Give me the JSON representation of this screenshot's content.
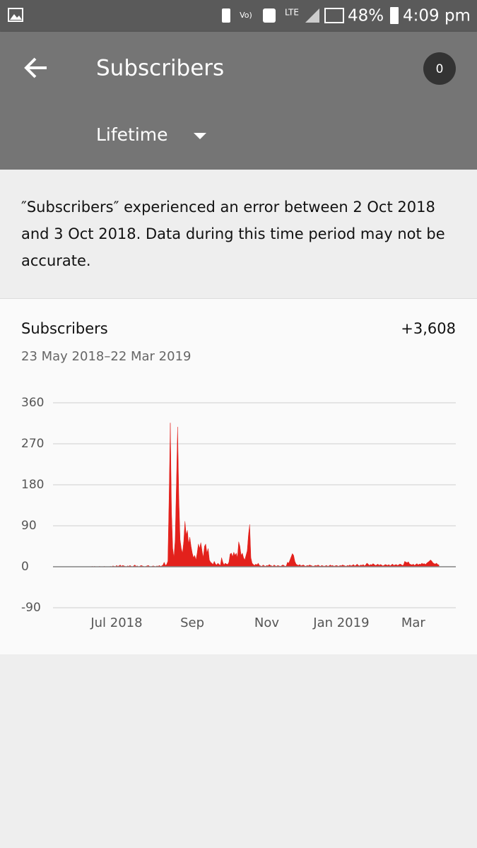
{
  "status_bar": {
    "network": "LTE",
    "battery": "48%",
    "time": "4:09 pm"
  },
  "header": {
    "title": "Subscribers",
    "badge": "0",
    "period": "Lifetime"
  },
  "notice": "″Subscribers″ experienced an error between 2 Oct 2018 and 3 Oct 2018. Data during this time period may not be accurate.",
  "card": {
    "title": "Subscribers",
    "total": "+3,608",
    "date_range": "23 May 2018–22 Mar 2019"
  },
  "chart_data": {
    "type": "area",
    "color": "#e3211c",
    "grid": true,
    "ylim": [
      -90,
      360
    ],
    "yticks": [
      -90,
      0,
      90,
      180,
      270,
      360
    ],
    "categories": [
      null,
      null,
      null,
      null,
      null,
      null,
      null,
      null,
      null,
      null,
      null,
      null,
      null,
      null,
      null,
      null,
      null,
      null,
      null,
      null,
      null,
      null,
      null,
      null,
      null,
      null,
      null,
      null,
      null,
      null,
      null,
      null,
      null,
      null,
      null,
      null,
      null,
      null,
      null,
      "Jul 2018",
      null,
      null,
      null,
      null,
      null,
      null,
      null,
      null,
      null,
      null,
      null,
      null,
      null,
      null,
      null,
      null,
      null,
      null,
      null,
      null,
      null,
      null,
      null,
      null,
      null,
      null,
      null,
      null,
      null,
      null,
      null,
      null,
      null,
      null,
      null,
      null,
      null,
      null,
      null,
      null,
      null,
      null,
      null,
      null,
      null,
      null,
      null,
      null,
      null,
      null,
      null,
      null,
      null,
      null,
      null,
      null,
      null,
      null,
      null,
      null,
      null,
      "Sep",
      null,
      null,
      null,
      null,
      null,
      null,
      null,
      null,
      null,
      null,
      null,
      null,
      null,
      null,
      null,
      null,
      null,
      null,
      null,
      null,
      null,
      null,
      null,
      null,
      null,
      null,
      null,
      null,
      null,
      null,
      null,
      null,
      null,
      null,
      null,
      null,
      null,
      null,
      null,
      null,
      null,
      null,
      null,
      null,
      null,
      null,
      null,
      null,
      null,
      null,
      null,
      null,
      null,
      null,
      null,
      null,
      null,
      null,
      null,
      null,
      "Nov",
      null,
      null,
      null,
      null,
      null,
      null,
      null,
      null,
      null,
      null,
      null,
      null,
      null,
      null,
      null,
      null,
      null,
      null,
      null,
      null,
      null,
      null,
      null,
      null,
      null,
      null,
      null,
      null,
      null,
      null,
      null,
      null,
      null,
      null,
      null,
      null,
      null,
      null,
      null,
      null,
      null,
      null,
      null,
      null,
      null,
      null,
      null,
      null,
      null,
      null,
      null,
      null,
      null,
      null,
      null,
      null,
      null,
      null,
      null,
      null,
      "Jan 2019",
      null,
      null,
      null,
      null,
      null,
      null,
      null,
      null,
      null,
      null,
      null,
      null,
      null,
      null,
      null,
      null,
      null,
      null,
      null,
      null,
      null,
      null,
      null,
      null,
      null,
      null,
      null,
      null,
      null,
      null,
      null,
      null,
      null,
      null,
      null,
      null,
      null,
      null,
      null,
      null,
      null,
      null,
      null,
      null,
      null,
      null,
      null,
      null,
      null,
      null,
      null,
      null,
      null,
      null,
      null,
      null,
      null,
      null,
      "Mar",
      null,
      null,
      null,
      null,
      null,
      null,
      null,
      null,
      null,
      null,
      null,
      null,
      null,
      null,
      null,
      null,
      null,
      null,
      null,
      null,
      null
    ],
    "values": [
      0,
      0,
      0,
      0,
      0,
      0,
      0,
      0,
      0,
      0,
      0,
      0,
      0,
      0,
      0,
      0,
      0,
      0,
      0,
      1,
      0,
      1,
      0,
      0,
      0,
      1,
      0,
      0,
      0,
      1,
      0,
      0,
      0,
      0,
      1,
      0,
      2,
      1,
      0,
      3,
      1,
      2,
      4,
      1,
      3,
      2,
      1,
      0,
      2,
      1,
      3,
      1,
      0,
      2,
      4,
      1,
      2,
      0,
      1,
      3,
      2,
      1,
      0,
      1,
      2,
      3,
      1,
      0,
      1,
      2,
      1,
      0,
      2,
      1,
      3,
      1,
      2,
      4,
      10,
      3,
      5,
      12,
      150,
      316,
      120,
      40,
      20,
      60,
      180,
      307,
      150,
      60,
      40,
      30,
      55,
      100,
      70,
      80,
      50,
      65,
      45,
      30,
      20,
      25,
      15,
      30,
      50,
      40,
      53,
      35,
      20,
      45,
      50,
      30,
      40,
      15,
      10,
      8,
      5,
      12,
      6,
      4,
      8,
      5,
      3,
      20,
      10,
      4,
      8,
      6,
      5,
      10,
      28,
      30,
      22,
      32,
      25,
      30,
      20,
      55,
      45,
      25,
      30,
      20,
      15,
      25,
      35,
      70,
      93,
      20,
      8,
      5,
      3,
      6,
      4,
      8,
      3,
      2,
      1,
      4,
      2,
      1,
      3,
      2,
      5,
      3,
      2,
      1,
      4,
      2,
      1,
      3,
      2,
      1,
      2,
      4,
      3,
      1,
      2,
      10,
      8,
      15,
      22,
      29,
      25,
      12,
      6,
      4,
      3,
      5,
      2,
      3,
      4,
      2,
      1,
      3,
      2,
      4,
      3,
      2,
      1,
      2,
      3,
      2,
      4,
      2,
      1,
      3,
      2,
      1,
      2,
      3,
      1,
      2,
      4,
      2,
      3,
      1,
      2,
      3,
      2,
      1,
      3,
      2,
      4,
      3,
      2,
      1,
      3,
      2,
      4,
      2,
      3,
      5,
      2,
      3,
      6,
      3,
      2,
      4,
      3,
      5,
      2,
      4,
      8,
      6,
      3,
      5,
      4,
      7,
      5,
      3,
      4,
      6,
      3,
      5,
      4,
      2,
      3,
      5,
      4,
      3,
      5,
      2,
      4,
      6,
      3,
      4,
      5,
      3,
      4,
      6,
      5,
      3,
      4,
      12,
      10,
      9,
      11,
      6,
      5,
      4,
      6,
      3,
      5,
      7,
      4,
      6,
      5,
      8,
      6,
      7,
      5,
      8,
      10,
      12,
      15,
      13,
      9,
      7,
      6,
      8,
      5,
      4
    ]
  }
}
